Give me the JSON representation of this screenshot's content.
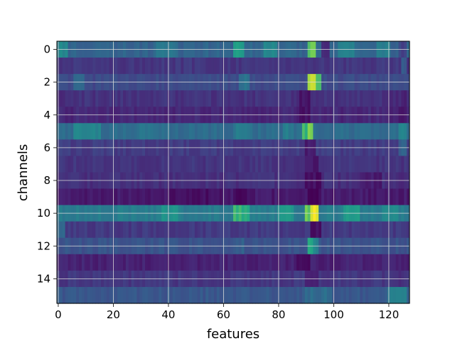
{
  "chart_data": {
    "type": "heatmap",
    "title": "",
    "xlabel": "features",
    "ylabel": "channels",
    "colormap": "viridis",
    "grid": true,
    "n_rows": 16,
    "n_cols": 128,
    "xlim": [
      -0.5,
      127.5
    ],
    "ylim": [
      15.5,
      -0.5
    ],
    "x_ticks": [
      0,
      20,
      40,
      60,
      80,
      100,
      120
    ],
    "x_tick_labels": [
      "0",
      "20",
      "40",
      "60",
      "80",
      "100",
      "120"
    ],
    "y_ticks": [
      0,
      2,
      4,
      6,
      8,
      10,
      12,
      14
    ],
    "y_tick_labels": [
      "0",
      "2",
      "4",
      "6",
      "8",
      "10",
      "12",
      "14"
    ],
    "rows": [
      {
        "channel": 0,
        "base": 0.4,
        "segments": [
          [
            0,
            4,
            0.58
          ],
          [
            36,
            44,
            0.48
          ],
          [
            64,
            68,
            0.68
          ],
          [
            75,
            80,
            0.58
          ],
          [
            91,
            94,
            0.85
          ],
          [
            96,
            99,
            0.15
          ],
          [
            102,
            108,
            0.52
          ],
          [
            116,
            121,
            0.52
          ],
          [
            124,
            127,
            0.25
          ]
        ]
      },
      {
        "channel": 1,
        "base": 0.2,
        "segments": [
          [
            125,
            127,
            0.34
          ]
        ]
      },
      {
        "channel": 2,
        "base": 0.28,
        "segments": [
          [
            6,
            10,
            0.42
          ],
          [
            66,
            70,
            0.48
          ],
          [
            91,
            94,
            0.92
          ],
          [
            94,
            96,
            0.78
          ]
        ]
      },
      {
        "channel": 3,
        "base": 0.18,
        "segments": [
          [
            0,
            3,
            0.12
          ],
          [
            88,
            92,
            0.08
          ],
          [
            120,
            127,
            0.14
          ]
        ]
      },
      {
        "channel": 4,
        "base": 0.14,
        "segments": [
          [
            88,
            92,
            0.06
          ],
          [
            122,
            127,
            0.1
          ]
        ]
      },
      {
        "channel": 5,
        "base": 0.44,
        "segments": [
          [
            6,
            16,
            0.55
          ],
          [
            30,
            36,
            0.5
          ],
          [
            64,
            70,
            0.52
          ],
          [
            82,
            86,
            0.52
          ],
          [
            89,
            91,
            0.78
          ],
          [
            91,
            93,
            0.88
          ],
          [
            95,
            98,
            0.4
          ],
          [
            124,
            127,
            0.55
          ]
        ]
      },
      {
        "channel": 6,
        "base": 0.22,
        "segments": [
          [
            90,
            94,
            0.1
          ],
          [
            124,
            127,
            0.38
          ]
        ]
      },
      {
        "channel": 7,
        "base": 0.19,
        "segments": [
          [
            90,
            95,
            0.08
          ]
        ]
      },
      {
        "channel": 8,
        "base": 0.17,
        "segments": [
          [
            90,
            96,
            0.05
          ],
          [
            110,
            118,
            0.1
          ]
        ]
      },
      {
        "channel": 9,
        "base": 0.09,
        "segments": [
          [
            40,
            60,
            0.05
          ],
          [
            64,
            70,
            0.04
          ],
          [
            91,
            95,
            0.0
          ]
        ]
      },
      {
        "channel": 10,
        "base": 0.52,
        "segments": [
          [
            38,
            44,
            0.62
          ],
          [
            64,
            70,
            0.78
          ],
          [
            80,
            86,
            0.66
          ],
          [
            90,
            92,
            0.85
          ],
          [
            92,
            95,
            0.98
          ],
          [
            104,
            110,
            0.68
          ],
          [
            118,
            124,
            0.6
          ]
        ]
      },
      {
        "channel": 11,
        "base": 0.21,
        "segments": [
          [
            0,
            3,
            0.4
          ],
          [
            92,
            96,
            0.06
          ]
        ]
      },
      {
        "channel": 12,
        "base": 0.32,
        "segments": [
          [
            64,
            68,
            0.38
          ],
          [
            91,
            93,
            0.74
          ],
          [
            93,
            95,
            0.55
          ]
        ]
      },
      {
        "channel": 13,
        "base": 0.12,
        "segments": [
          [
            86,
            92,
            0.05
          ]
        ]
      },
      {
        "channel": 14,
        "base": 0.2,
        "segments": [
          [
            90,
            95,
            0.1
          ],
          [
            124,
            127,
            0.18
          ]
        ]
      },
      {
        "channel": 15,
        "base": 0.34,
        "segments": [
          [
            90,
            100,
            0.44
          ],
          [
            120,
            127,
            0.52
          ]
        ]
      }
    ]
  }
}
